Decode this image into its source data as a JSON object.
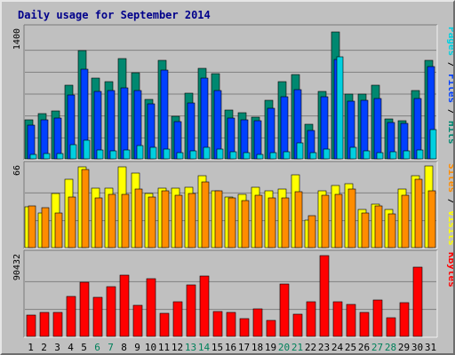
{
  "page": {
    "title": "Daily usage for September 2014"
  },
  "chart_data": {
    "type": "bar",
    "title": "Daily usage for September 2014",
    "x": [
      "1",
      "2",
      "3",
      "4",
      "5",
      "6",
      "7",
      "8",
      "9",
      "10",
      "11",
      "12",
      "13",
      "14",
      "15",
      "16",
      "17",
      "18",
      "19",
      "20",
      "21",
      "22",
      "23",
      "24",
      "25",
      "26",
      "27",
      "28",
      "29",
      "30",
      "31"
    ],
    "weekend_days": [
      "6",
      "7",
      "13",
      "14",
      "20",
      "21",
      "27",
      "28"
    ],
    "panels": [
      {
        "name": "pages-files-hits",
        "ymax_label": "1400",
        "ymax": 1400,
        "right_labels": [
          {
            "text": "Pages",
            "color": "#00d0e0"
          },
          {
            "text": " / ",
            "color": "#000000"
          },
          {
            "text": "Files",
            "color": "#0040ff"
          },
          {
            "text": " / ",
            "color": "#000000"
          },
          {
            "text": "Hits",
            "color": "#008870"
          }
        ],
        "series": [
          {
            "name": "Hits",
            "color": "#008870",
            "values": [
              420,
              490,
              520,
              800,
              1170,
              870,
              830,
              1080,
              930,
              640,
              1060,
              460,
              710,
              980,
              920,
              530,
              500,
              450,
              630,
              830,
              910,
              370,
              730,
              1370,
              700,
              700,
              800,
              430,
              410,
              740,
              1060
            ]
          },
          {
            "name": "Files",
            "color": "#0040ff",
            "values": [
              360,
              420,
              440,
              690,
              970,
              730,
              740,
              770,
              740,
              590,
              960,
              400,
              600,
              870,
              740,
              440,
              420,
              410,
              550,
              670,
              750,
              310,
              670,
              1070,
              620,
              630,
              650,
              390,
              380,
              650,
              1000
            ]
          },
          {
            "name": "Pages",
            "color": "#00d0e0",
            "values": [
              50,
              60,
              60,
              150,
              200,
              100,
              90,
              100,
              140,
              120,
              110,
              70,
              90,
              120,
              110,
              80,
              70,
              50,
              70,
              80,
              170,
              70,
              110,
              1100,
              120,
              90,
              70,
              80,
              90,
              100,
              320
            ]
          }
        ]
      },
      {
        "name": "sites-visits",
        "ymax_label": "66",
        "ymax": 66,
        "right_labels": [
          {
            "text": "Sites",
            "color": "#ff8c00"
          },
          {
            "text": " / ",
            "color": "#000000"
          },
          {
            "text": "Visits",
            "color": "#ffff00"
          }
        ],
        "series": [
          {
            "name": "Visits",
            "color": "#ffff00",
            "values": [
              33,
              28,
              44,
              55,
              65,
              48,
              48,
              65,
              60,
              44,
              48,
              48,
              49,
              58,
              46,
              41,
              43,
              49,
              46,
              47,
              59,
              22,
              46,
              50,
              52,
              31,
              35,
              31,
              47,
              58,
              66
            ]
          },
          {
            "name": "Sites",
            "color": "#ff8c00",
            "values": [
              34,
              32,
              28,
              41,
              63,
              40,
              43,
              43,
              47,
              41,
              46,
              42,
              44,
              53,
              46,
              40,
              38,
              42,
              40,
              40,
              45,
              26,
              42,
              43,
              47,
              28,
              34,
              27,
              42,
              55,
              46
            ]
          }
        ]
      },
      {
        "name": "kbytes",
        "ymax_label": "90432",
        "ymax": 90432,
        "right_labels": [
          {
            "text": "KBytes",
            "color": "#ff0000"
          }
        ],
        "series": [
          {
            "name": "KBytes",
            "color": "#ff0000",
            "values": [
              24000,
              27000,
              27000,
              44000,
              60000,
              43000,
              55000,
              68000,
              34000,
              64000,
              26000,
              38000,
              57000,
              67000,
              28000,
              27000,
              20000,
              30000,
              18000,
              58000,
              25000,
              38000,
              89000,
              38000,
              35000,
              27000,
              40000,
              21000,
              37000,
              77000,
              0
            ]
          }
        ]
      }
    ]
  }
}
